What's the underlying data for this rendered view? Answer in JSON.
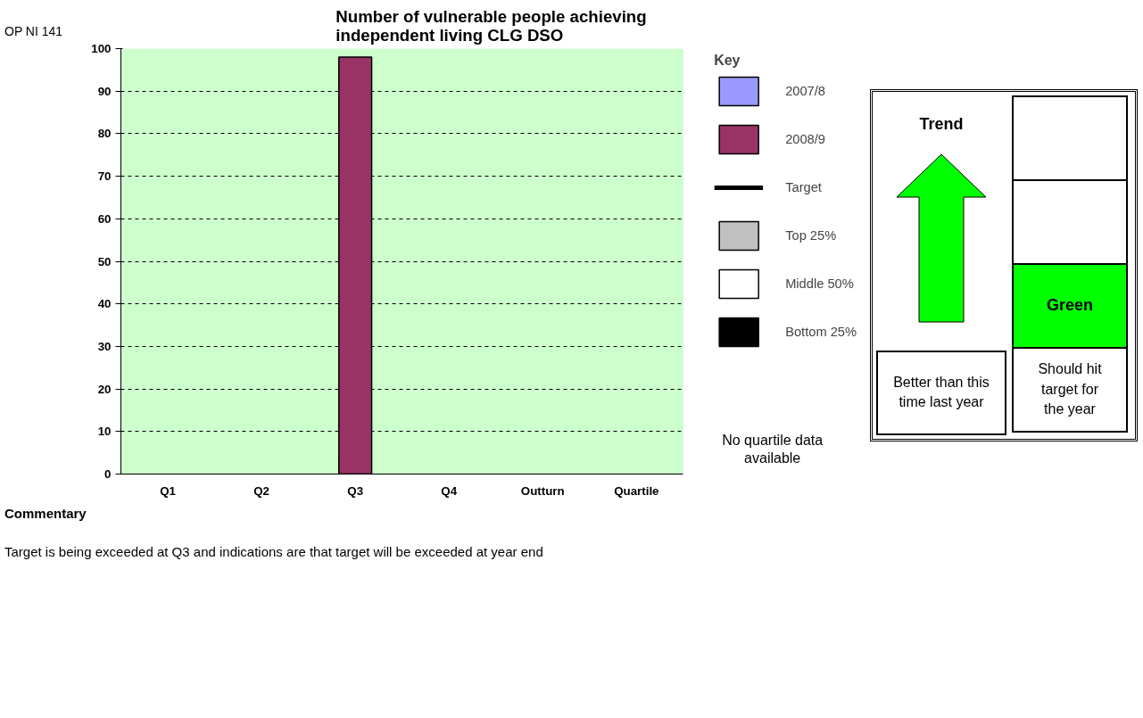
{
  "chart_data": {
    "type": "bar",
    "title": "Number of vulnerable people achieving independent living CLG DSO",
    "categories": [
      "Q1",
      "Q2",
      "Q3",
      "Q4",
      "Outturn",
      "Quartile"
    ],
    "series": [
      {
        "name": "2007/8",
        "color": "#9999ff",
        "values": [
          null,
          null,
          null,
          null,
          null,
          null
        ]
      },
      {
        "name": "2008/9",
        "color": "#993366",
        "values": [
          null,
          null,
          98,
          null,
          null,
          null
        ]
      },
      {
        "name": "Target",
        "type": "line",
        "color": "#000000",
        "values": [
          null,
          null,
          null,
          null,
          null,
          null
        ]
      },
      {
        "name": "Top 25%",
        "color": "#c0c0c0",
        "values": [
          null,
          null,
          null,
          null,
          null,
          null
        ]
      },
      {
        "name": "Middle 50%",
        "color": "#ffffff",
        "values": [
          null,
          null,
          null,
          null,
          null,
          null
        ]
      },
      {
        "name": "Bottom 25%",
        "color": "#000000",
        "values": [
          null,
          null,
          null,
          null,
          null,
          null
        ]
      }
    ],
    "legend_title": "Key",
    "legend": "right",
    "ylim": [
      0,
      100
    ],
    "yticks": [
      0,
      10,
      20,
      30,
      40,
      50,
      60,
      70,
      80,
      90,
      100
    ],
    "grid": "y",
    "annotations": [
      "OP NI 141",
      "No quartile data available",
      "Trend",
      "Green",
      "Better than this time last year",
      "Should hit target for the year",
      "Commentary",
      "Target is being exceeded at Q3 and indications are that target will be exceeded at year end"
    ]
  }
}
